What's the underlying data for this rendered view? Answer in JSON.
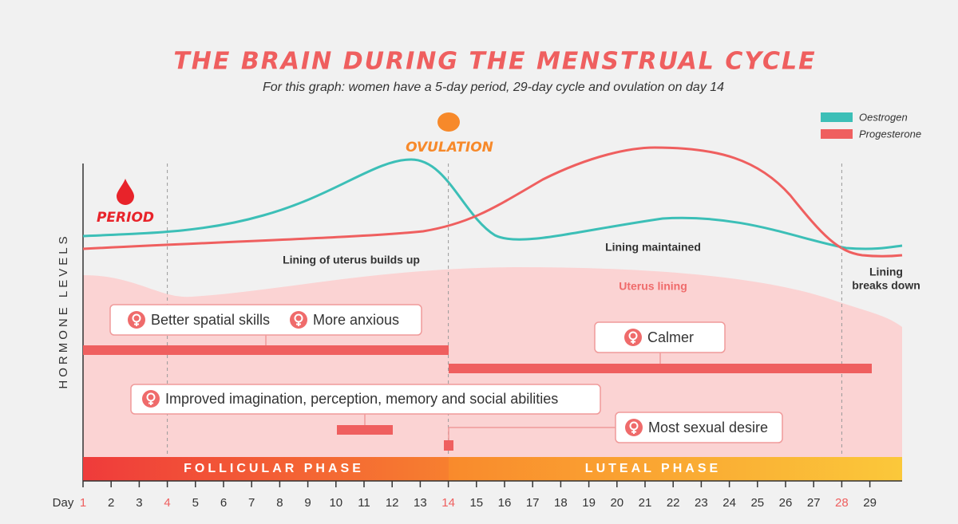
{
  "header": {
    "title": "THE BRAIN DURING THE MENSTRUAL CYCLE",
    "subtitle": "For this graph: women have a 5-day period, 29-day cycle and ovulation on day 14"
  },
  "legend": [
    {
      "name": "Oestrogen",
      "color": "#3cbfb7"
    },
    {
      "name": "Progesterone",
      "color": "#ef5f5f"
    }
  ],
  "y_axis_label": "HORMONE LEVELS",
  "markers": {
    "period": "PERIOD",
    "ovulation": "OVULATION"
  },
  "annotations": {
    "builds_up": "Lining of uterus builds up",
    "maintained": "Lining maintained",
    "uterus_lining": "Uterus lining",
    "breaks_down_1": "Lining",
    "breaks_down_2": "breaks down"
  },
  "effects": {
    "spatial": "Better spatial skills",
    "anxious": "More anxious",
    "calmer": "Calmer",
    "imagination": "Improved imagination, perception, memory and social abilities",
    "desire": "Most sexual desire"
  },
  "phases": {
    "follicular": "FOLLICULAR PHASE",
    "luteal": "LUTEAL PHASE"
  },
  "day_label": "Day",
  "days": [
    {
      "day": 1,
      "highlight": true
    },
    {
      "day": 2
    },
    {
      "day": 3
    },
    {
      "day": 4,
      "highlight": true
    },
    {
      "day": 5
    },
    {
      "day": 6
    },
    {
      "day": 7
    },
    {
      "day": 8
    },
    {
      "day": 9
    },
    {
      "day": 10
    },
    {
      "day": 11
    },
    {
      "day": 12
    },
    {
      "day": 13
    },
    {
      "day": 14,
      "highlight": true
    },
    {
      "day": 15
    },
    {
      "day": 16
    },
    {
      "day": 17
    },
    {
      "day": 18
    },
    {
      "day": 19
    },
    {
      "day": 20
    },
    {
      "day": 21
    },
    {
      "day": 22
    },
    {
      "day": 23
    },
    {
      "day": 24
    },
    {
      "day": 25
    },
    {
      "day": 26
    },
    {
      "day": 27
    },
    {
      "day": 28,
      "highlight": true
    },
    {
      "day": 29
    }
  ]
}
